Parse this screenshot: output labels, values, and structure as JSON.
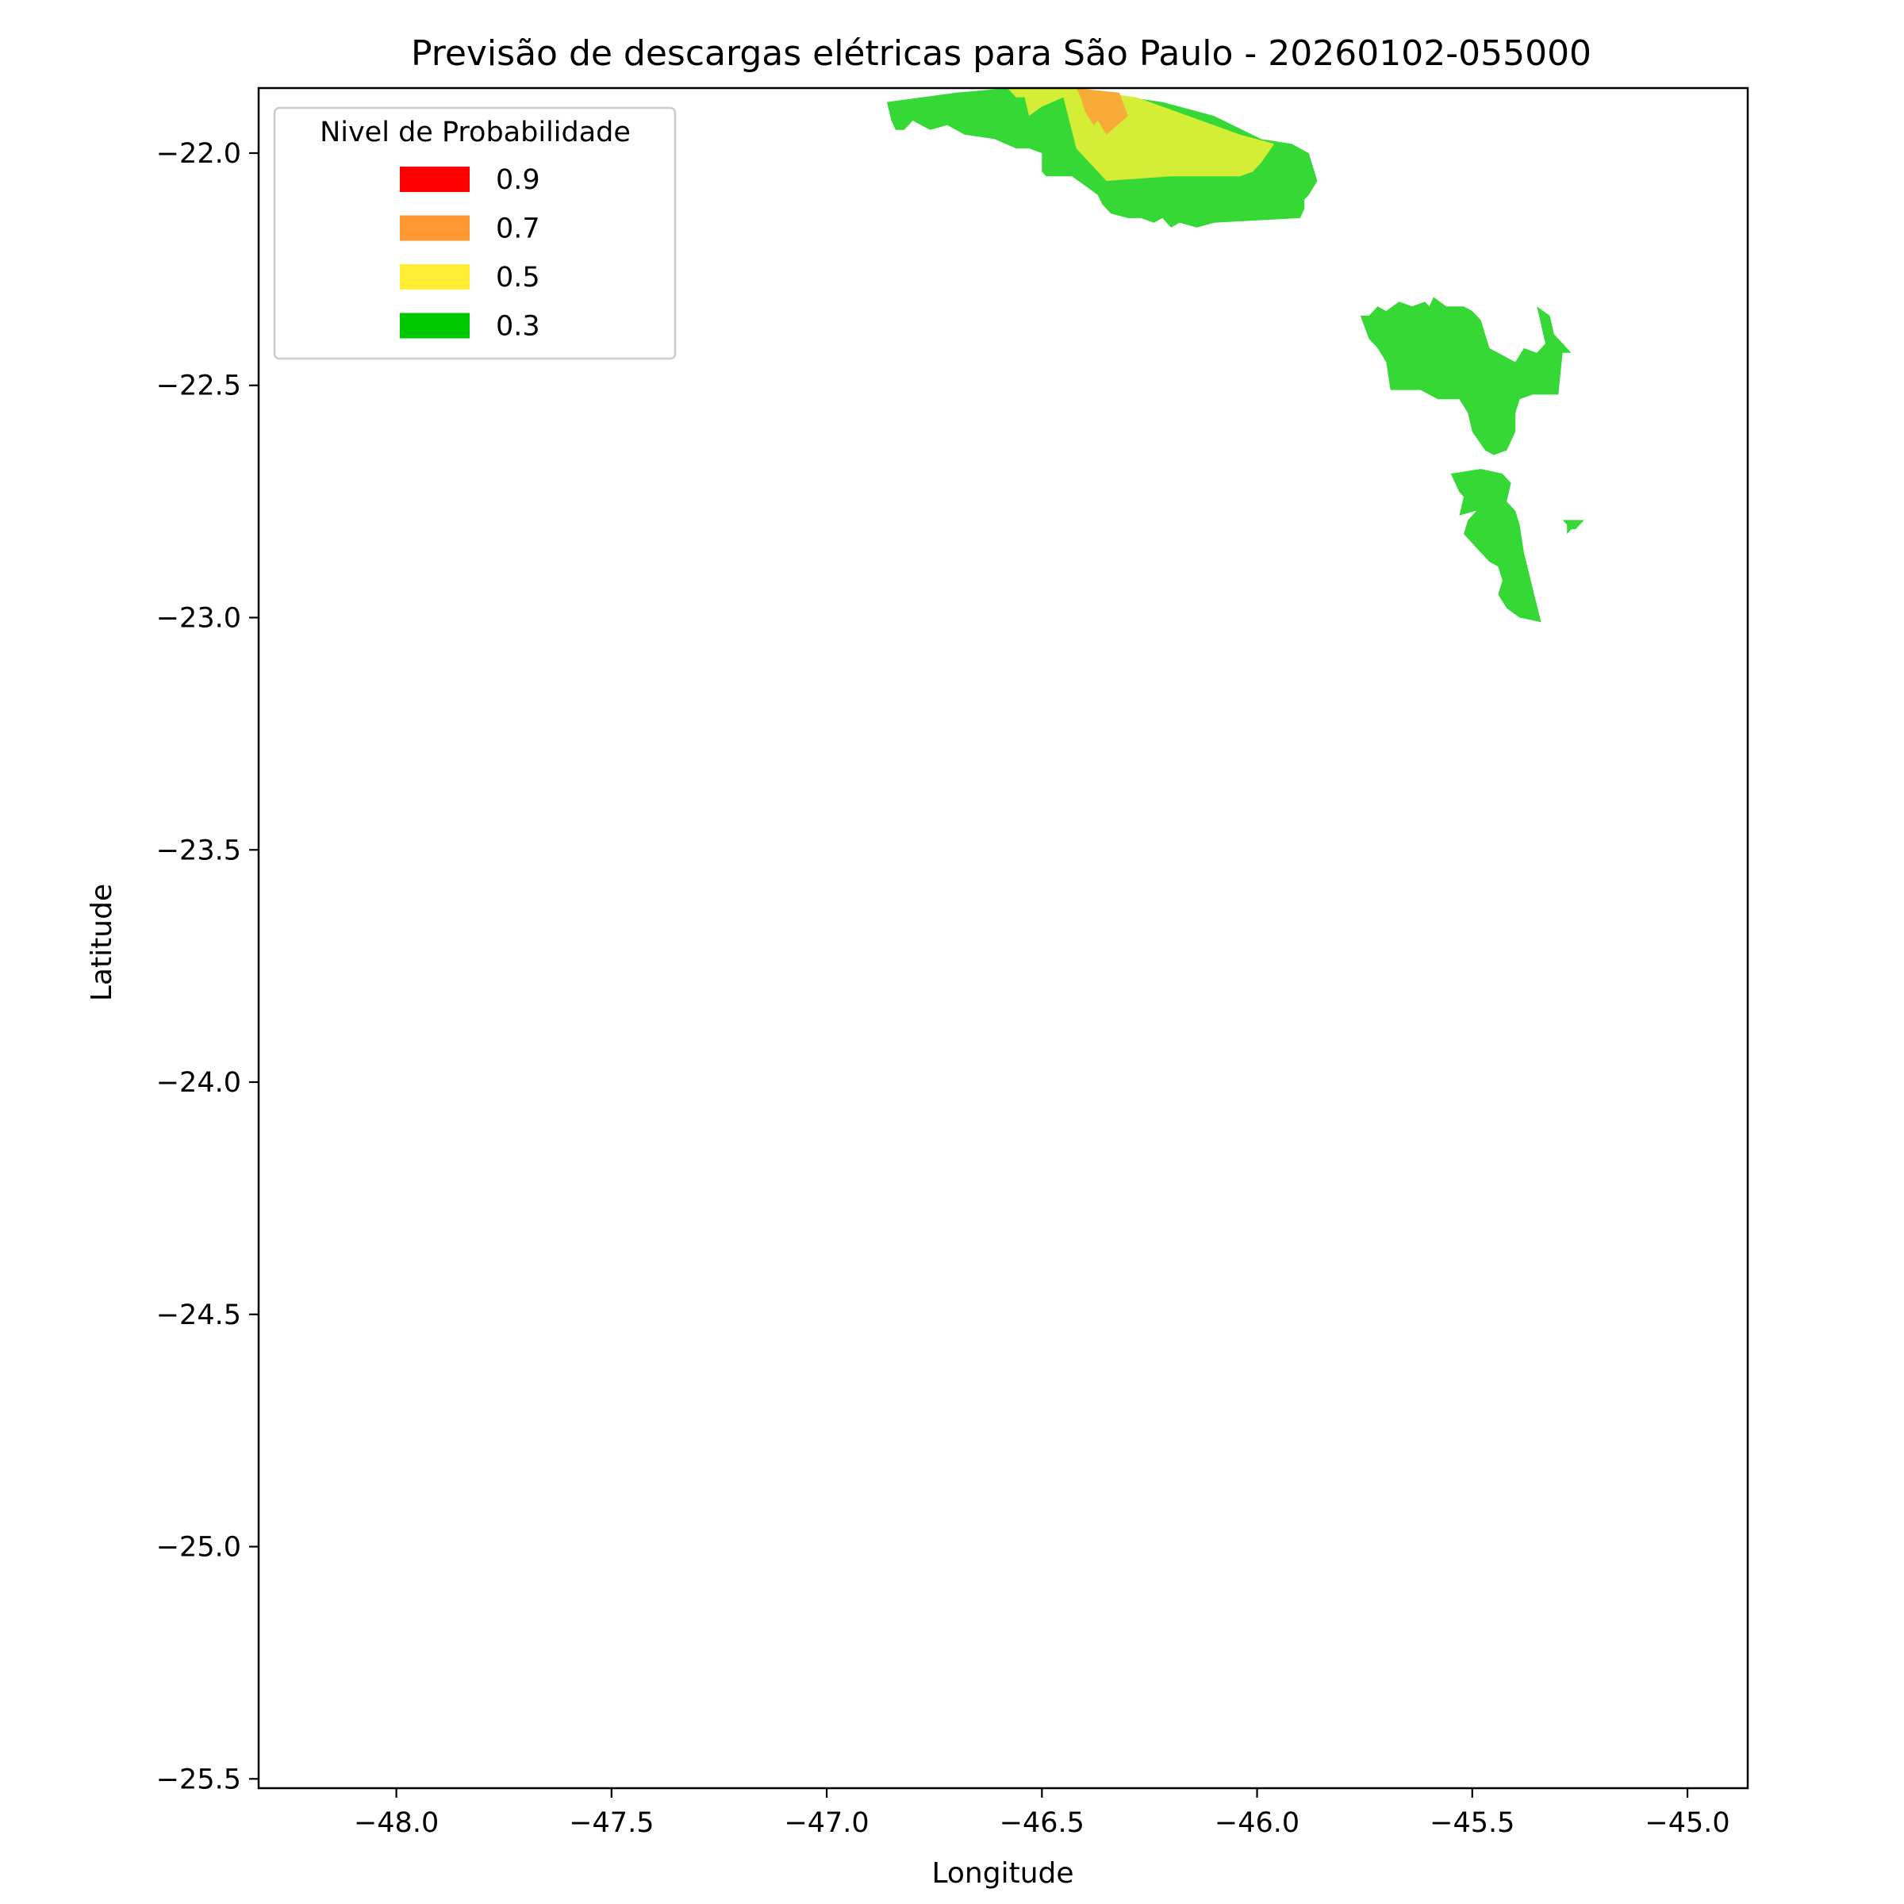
{
  "chart_data": {
    "type": "filled-contour-map",
    "title": "Previsão de descargas elétricas para São Paulo - 20260102-055000",
    "xlabel": "Longitude",
    "ylabel": "Latitude",
    "xlim": [
      -48.32,
      -44.86
    ],
    "ylim": [
      -25.52,
      -21.86
    ],
    "xticks": [
      -48.0,
      -47.5,
      -47.0,
      -46.5,
      -46.0,
      -45.5,
      -45.0
    ],
    "yticks": [
      -22.0,
      -22.5,
      -23.0,
      -23.5,
      -24.0,
      -24.5,
      -25.0,
      -25.5
    ],
    "xtick_labels": [
      "−48.0",
      "−47.5",
      "−47.0",
      "−46.5",
      "−46.0",
      "−45.5",
      "−45.0"
    ],
    "ytick_labels": [
      "−22.0",
      "−22.5",
      "−23.0",
      "−23.5",
      "−24.0",
      "−24.5",
      "−25.0",
      "−25.5"
    ],
    "grid": false,
    "legend": {
      "title": "Nivel de Probabilidade",
      "placement": "top-left",
      "entries": [
        {
          "label": "0.9",
          "color": "#ff0000"
        },
        {
          "label": "0.7",
          "color": "#ff9933"
        },
        {
          "label": "0.5",
          "color": "#ffee33"
        },
        {
          "label": "0.3",
          "color": "#00c800"
        }
      ]
    },
    "regions": [
      {
        "level": "0.3",
        "color": "#36d836",
        "points": [
          [
            -46.86,
            -21.89
          ],
          [
            -46.7,
            -21.87
          ],
          [
            -46.58,
            -21.86
          ],
          [
            -46.45,
            -21.86
          ],
          [
            -46.22,
            -21.89
          ],
          [
            -46.1,
            -21.92
          ],
          [
            -45.99,
            -21.97
          ],
          [
            -45.92,
            -21.98
          ],
          [
            -45.88,
            -22.0
          ],
          [
            -45.86,
            -22.06
          ],
          [
            -45.88,
            -22.09
          ],
          [
            -45.89,
            -22.1
          ],
          [
            -45.89,
            -22.12
          ],
          [
            -45.9,
            -22.14
          ],
          [
            -46.1,
            -22.15
          ],
          [
            -46.14,
            -22.16
          ],
          [
            -46.18,
            -22.15
          ],
          [
            -46.2,
            -22.16
          ],
          [
            -46.22,
            -22.14
          ],
          [
            -46.24,
            -22.15
          ],
          [
            -46.27,
            -22.14
          ],
          [
            -46.3,
            -22.14
          ],
          [
            -46.34,
            -22.13
          ],
          [
            -46.36,
            -22.11
          ],
          [
            -46.37,
            -22.09
          ],
          [
            -46.43,
            -22.05
          ],
          [
            -46.49,
            -22.05
          ],
          [
            -46.5,
            -22.04
          ],
          [
            -46.5,
            -22.0
          ],
          [
            -46.53,
            -21.99
          ],
          [
            -46.56,
            -21.99
          ],
          [
            -46.61,
            -21.97
          ],
          [
            -46.68,
            -21.96
          ],
          [
            -46.72,
            -21.94
          ],
          [
            -46.76,
            -21.95
          ],
          [
            -46.8,
            -21.93
          ],
          [
            -46.82,
            -21.95
          ],
          [
            -46.84,
            -21.95
          ],
          [
            -46.85,
            -21.93
          ]
        ]
      },
      {
        "level": "0.5",
        "color": "#d4ed36",
        "points": [
          [
            -46.58,
            -21.86
          ],
          [
            -46.44,
            -21.86
          ],
          [
            -46.28,
            -21.88
          ],
          [
            -46.16,
            -21.92
          ],
          [
            -46.04,
            -21.96
          ],
          [
            -45.96,
            -21.98
          ],
          [
            -45.99,
            -22.02
          ],
          [
            -46.01,
            -22.04
          ],
          [
            -46.04,
            -22.05
          ],
          [
            -46.2,
            -22.05
          ],
          [
            -46.35,
            -22.06
          ],
          [
            -46.42,
            -21.99
          ],
          [
            -46.45,
            -21.88
          ],
          [
            -46.5,
            -21.9
          ],
          [
            -46.53,
            -21.92
          ],
          [
            -46.54,
            -21.88
          ],
          [
            -46.56,
            -21.88
          ]
        ]
      },
      {
        "level": "0.7",
        "color": "#f8ab36",
        "points": [
          [
            -46.42,
            -21.86
          ],
          [
            -46.32,
            -21.87
          ],
          [
            -46.3,
            -21.92
          ],
          [
            -46.35,
            -21.96
          ],
          [
            -46.37,
            -21.93
          ],
          [
            -46.38,
            -21.94
          ],
          [
            -46.4,
            -21.91
          ],
          [
            -46.41,
            -21.88
          ]
        ]
      },
      {
        "level": "0.3",
        "color": "#36d836",
        "points": [
          [
            -45.76,
            -22.35
          ],
          [
            -45.74,
            -22.4
          ],
          [
            -45.72,
            -22.42
          ],
          [
            -45.7,
            -22.45
          ],
          [
            -45.69,
            -22.51
          ],
          [
            -45.62,
            -22.51
          ],
          [
            -45.58,
            -22.53
          ],
          [
            -45.53,
            -22.53
          ],
          [
            -45.51,
            -22.56
          ],
          [
            -45.5,
            -22.6
          ],
          [
            -45.47,
            -22.64
          ],
          [
            -45.45,
            -22.65
          ],
          [
            -45.42,
            -22.64
          ],
          [
            -45.4,
            -22.6
          ],
          [
            -45.4,
            -22.56
          ],
          [
            -45.39,
            -22.53
          ],
          [
            -45.36,
            -22.52
          ],
          [
            -45.3,
            -22.52
          ],
          [
            -45.29,
            -22.43
          ],
          [
            -45.27,
            -22.43
          ],
          [
            -45.31,
            -22.39
          ],
          [
            -45.32,
            -22.35
          ],
          [
            -45.35,
            -22.33
          ],
          [
            -45.34,
            -22.37
          ],
          [
            -45.33,
            -22.41
          ],
          [
            -45.35,
            -22.43
          ],
          [
            -45.38,
            -22.42
          ],
          [
            -45.4,
            -22.45
          ],
          [
            -45.46,
            -22.42
          ],
          [
            -45.48,
            -22.36
          ],
          [
            -45.5,
            -22.34
          ],
          [
            -45.52,
            -22.33
          ],
          [
            -45.56,
            -22.33
          ],
          [
            -45.59,
            -22.31
          ],
          [
            -45.6,
            -22.33
          ],
          [
            -45.61,
            -22.32
          ],
          [
            -45.64,
            -22.33
          ],
          [
            -45.67,
            -22.32
          ],
          [
            -45.7,
            -22.34
          ],
          [
            -45.72,
            -22.33
          ],
          [
            -45.74,
            -22.35
          ]
        ]
      },
      {
        "level": "0.3",
        "color": "#36d836",
        "points": [
          [
            -45.55,
            -22.69
          ],
          [
            -45.53,
            -22.73
          ],
          [
            -45.52,
            -22.74
          ],
          [
            -45.53,
            -22.78
          ],
          [
            -45.49,
            -22.77
          ],
          [
            -45.51,
            -22.79
          ],
          [
            -45.52,
            -22.82
          ],
          [
            -45.49,
            -22.85
          ],
          [
            -45.46,
            -22.88
          ],
          [
            -45.44,
            -22.89
          ],
          [
            -45.43,
            -22.92
          ],
          [
            -45.44,
            -22.95
          ],
          [
            -45.42,
            -22.98
          ],
          [
            -45.39,
            -23.0
          ],
          [
            -45.34,
            -23.01
          ],
          [
            -45.38,
            -22.86
          ],
          [
            -45.39,
            -22.8
          ],
          [
            -45.4,
            -22.77
          ],
          [
            -45.42,
            -22.75
          ],
          [
            -45.41,
            -22.71
          ],
          [
            -45.43,
            -22.69
          ],
          [
            -45.48,
            -22.68
          ]
        ]
      },
      {
        "level": "0.3",
        "color": "#36d836",
        "points": [
          [
            -45.29,
            -22.79
          ],
          [
            -45.24,
            -22.79
          ],
          [
            -45.25,
            -22.8
          ],
          [
            -45.26,
            -22.81
          ],
          [
            -45.27,
            -22.81
          ],
          [
            -45.28,
            -22.82
          ],
          [
            -45.28,
            -22.8
          ]
        ]
      }
    ]
  }
}
